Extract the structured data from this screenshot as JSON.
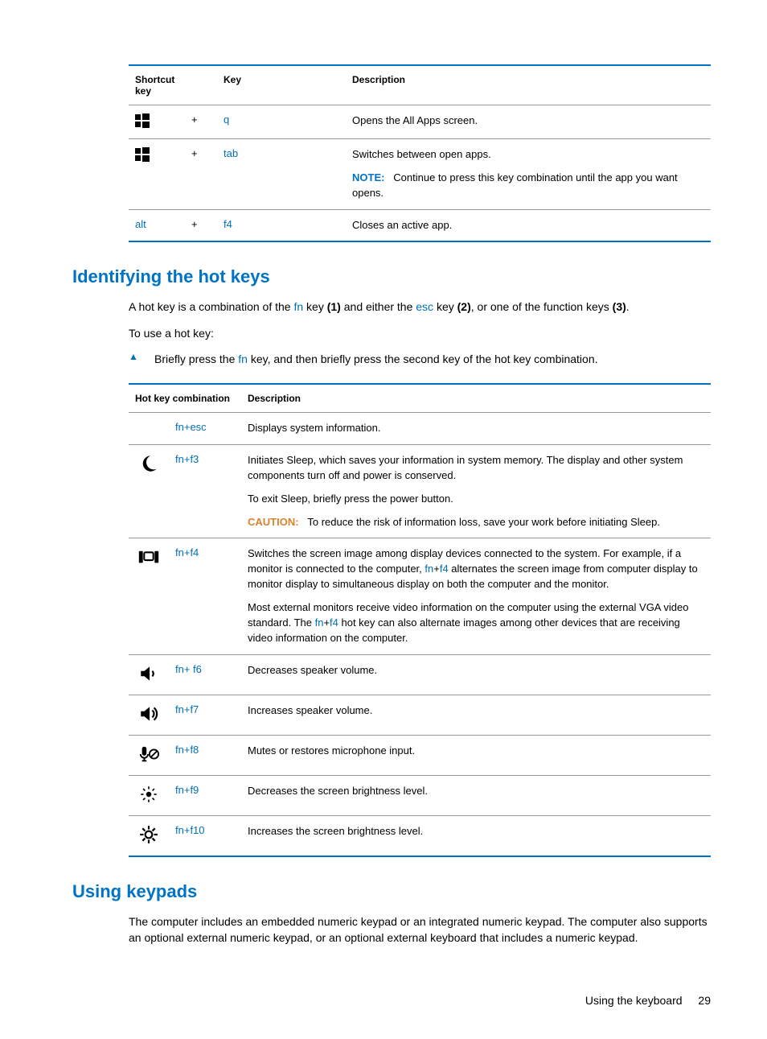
{
  "shortcut_table": {
    "headers": [
      "Shortcut key",
      "",
      "Key",
      "Description"
    ],
    "rows": [
      {
        "icon": "windows",
        "plus": "+",
        "key": "q",
        "desc": [
          {
            "type": "text",
            "text": "Opens the All Apps screen."
          }
        ]
      },
      {
        "icon": "windows",
        "plus": "+",
        "key": "tab",
        "desc": [
          {
            "type": "text",
            "text": "Switches between open apps."
          },
          {
            "type": "note",
            "label": "NOTE:",
            "text": "Continue to press this key combination until the app you want opens."
          }
        ]
      },
      {
        "icon_text": "alt",
        "plus": "+",
        "key": "f4",
        "desc": [
          {
            "type": "text",
            "text": "Closes an active app."
          }
        ]
      }
    ]
  },
  "heading1": "Identifying the hot keys",
  "intro1_a": "A hot key is a combination of the ",
  "intro1_fn": "fn",
  "intro1_b": " key ",
  "intro1_b1": "(1)",
  "intro1_c": " and either the ",
  "intro1_esc": "esc",
  "intro1_d": " key ",
  "intro1_d1": "(2)",
  "intro1_e": ", or one of the function keys ",
  "intro1_e1": "(3)",
  "intro1_f": ".",
  "intro2": "To use a hot key:",
  "bullet_a": "Briefly press the ",
  "bullet_fn": "fn",
  "bullet_b": " key, and then briefly press the second key of the hot key combination.",
  "hotkey_table": {
    "headers": [
      "",
      "Hot key combination",
      "Description"
    ],
    "rows": [
      {
        "icon": "",
        "combo_pre": "fn",
        "combo_plus": "+",
        "combo_post": "esc",
        "desc": [
          {
            "type": "text",
            "text": "Displays system information."
          }
        ]
      },
      {
        "icon": "moon",
        "combo_pre": "fn",
        "combo_plus": "+",
        "combo_post": "f3",
        "desc": [
          {
            "type": "text",
            "text": "Initiates Sleep, which saves your information in system memory. The display and other system components turn off and power is conserved."
          },
          {
            "type": "text",
            "text": "To exit Sleep, briefly press the power button."
          },
          {
            "type": "caution",
            "label": "CAUTION:",
            "text": "To reduce the risk of information loss, save your work before initiating Sleep."
          }
        ]
      },
      {
        "icon": "display",
        "combo_pre": "fn",
        "combo_plus": "+",
        "combo_post": "f4",
        "desc": [
          {
            "type": "rich",
            "parts": [
              {
                "t": "Switches the screen image among display devices connected to the system. For example, if a monitor is connected to the computer, "
              },
              {
                "k": "fn"
              },
              {
                "t": "+"
              },
              {
                "k": "f4"
              },
              {
                "t": " alternates the screen image from computer display to monitor display to simultaneous display on both the computer and the monitor."
              }
            ]
          },
          {
            "type": "rich",
            "parts": [
              {
                "t": "Most external monitors receive video information on the computer using the external VGA video standard. The "
              },
              {
                "k": "fn"
              },
              {
                "t": "+"
              },
              {
                "k": "f4"
              },
              {
                "t": " hot key can also alternate images among other devices that are receiving video information on the computer."
              }
            ]
          }
        ]
      },
      {
        "icon": "voldown",
        "combo_pre": "fn",
        "combo_plus": "+",
        "combo_post": " f6",
        "desc": [
          {
            "type": "text",
            "text": "Decreases speaker volume."
          }
        ]
      },
      {
        "icon": "volup",
        "combo_pre": "fn",
        "combo_plus": "+",
        "combo_post": "f7",
        "desc": [
          {
            "type": "text",
            "text": "Increases speaker volume."
          }
        ]
      },
      {
        "icon": "micmute",
        "combo_pre": "fn",
        "combo_plus": "+",
        "combo_post": "f8",
        "desc": [
          {
            "type": "text",
            "text": "Mutes or restores microphone input."
          }
        ]
      },
      {
        "icon": "brightdown",
        "combo_pre": "fn",
        "combo_plus": "+",
        "combo_post": "f9",
        "desc": [
          {
            "type": "text",
            "text": "Decreases the screen brightness level."
          }
        ]
      },
      {
        "icon": "brightup",
        "combo_pre": "fn",
        "combo_plus": "+",
        "combo_post": "f10",
        "desc": [
          {
            "type": "text",
            "text": "Increases the screen brightness level."
          }
        ]
      }
    ]
  },
  "heading2": "Using keypads",
  "keypads_text": "The computer includes an embedded numeric keypad or an integrated numeric keypad. The computer also supports an optional external numeric keypad, or an optional external keyboard that includes a numeric keypad.",
  "footer_text": "Using the keyboard",
  "footer_page": "29"
}
